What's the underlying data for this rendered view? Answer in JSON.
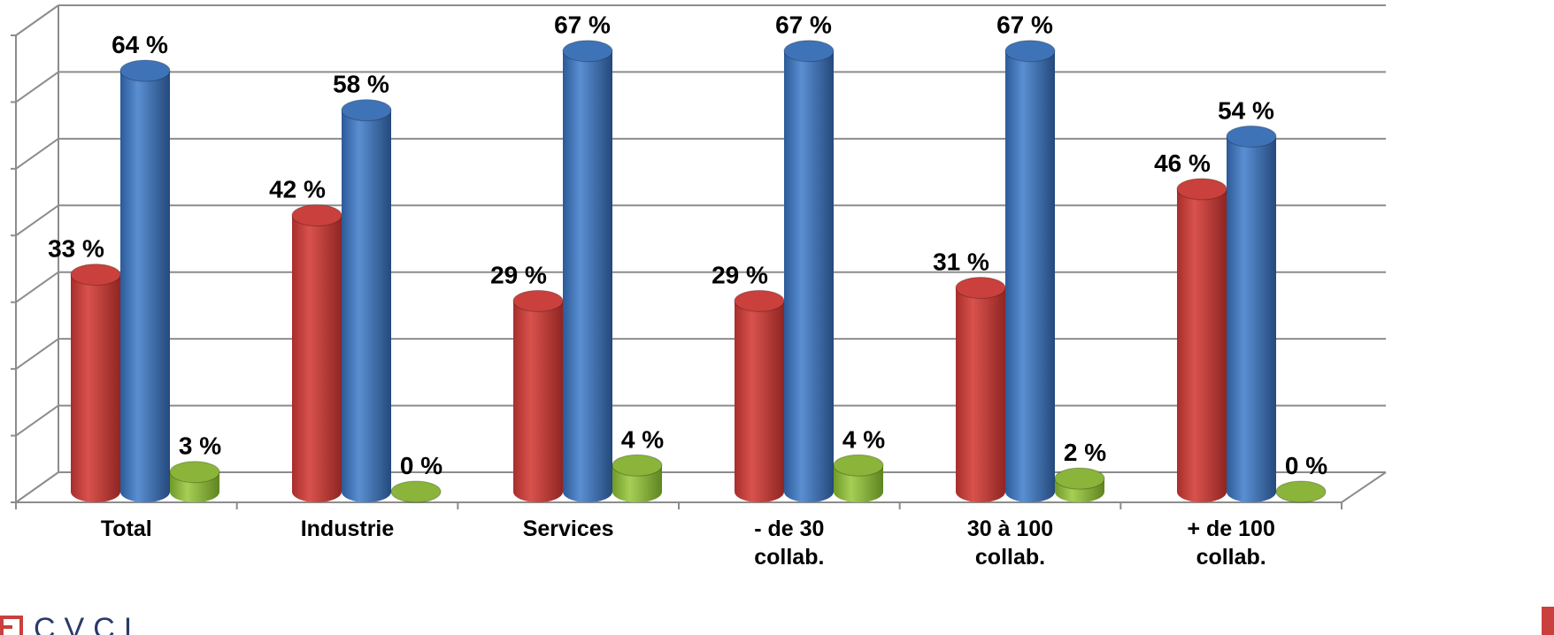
{
  "chart_data": {
    "type": "bar",
    "categories": [
      [
        "Total"
      ],
      [
        "Industrie"
      ],
      [
        "Services"
      ],
      [
        "- de 30",
        "collab."
      ],
      [
        "30 à 100",
        "collab."
      ],
      [
        "+ de 100",
        "collab."
      ]
    ],
    "series": [
      {
        "color": "#c9403c",
        "values": [
          33,
          42,
          29,
          29,
          31,
          46
        ],
        "labels": [
          "33 %",
          "42 %",
          "29 %",
          "29 %",
          "31 %",
          "46 %"
        ]
      },
      {
        "color": "#3f73b8",
        "values": [
          64,
          58,
          67,
          67,
          67,
          54
        ],
        "labels": [
          "64 %",
          "58 %",
          "67 %",
          "67 %",
          "67 %",
          "54 %"
        ]
      },
      {
        "color": "#8ab43a",
        "values": [
          3,
          0,
          4,
          4,
          2,
          0
        ],
        "labels": [
          "3 %",
          "0 %",
          "4 %",
          "4 %",
          "2 %",
          "0 %"
        ]
      }
    ],
    "ylim": [
      0,
      70
    ],
    "grid": true,
    "legend": false,
    "style": "3d-cylinder"
  },
  "logo": {
    "text": "CVCI"
  }
}
